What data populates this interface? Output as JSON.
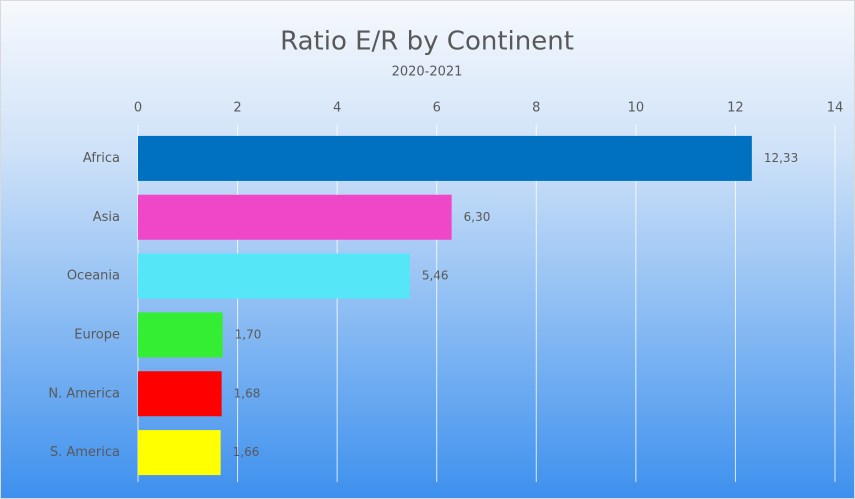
{
  "chart_data": {
    "type": "hbar",
    "title": "Ratio E/R by Continent",
    "subtitle": "2020-2021",
    "categories": [
      "Africa",
      "Asia",
      "Oceania",
      "Europe",
      "N. America",
      "S. America"
    ],
    "values": [
      12.33,
      6.3,
      5.46,
      1.7,
      1.68,
      1.66
    ],
    "value_labels": [
      "12,33",
      "6,30",
      "5,46",
      "1,70",
      "1,68",
      "1,66"
    ],
    "colors": [
      "#0070c0",
      "#f046c8",
      "#55e6f8",
      "#33ee33",
      "#ff0000",
      "#ffff00"
    ],
    "xlim": [
      0,
      14
    ],
    "xticks": [
      0,
      2,
      4,
      6,
      8,
      10,
      12,
      14
    ],
    "grid": true
  }
}
